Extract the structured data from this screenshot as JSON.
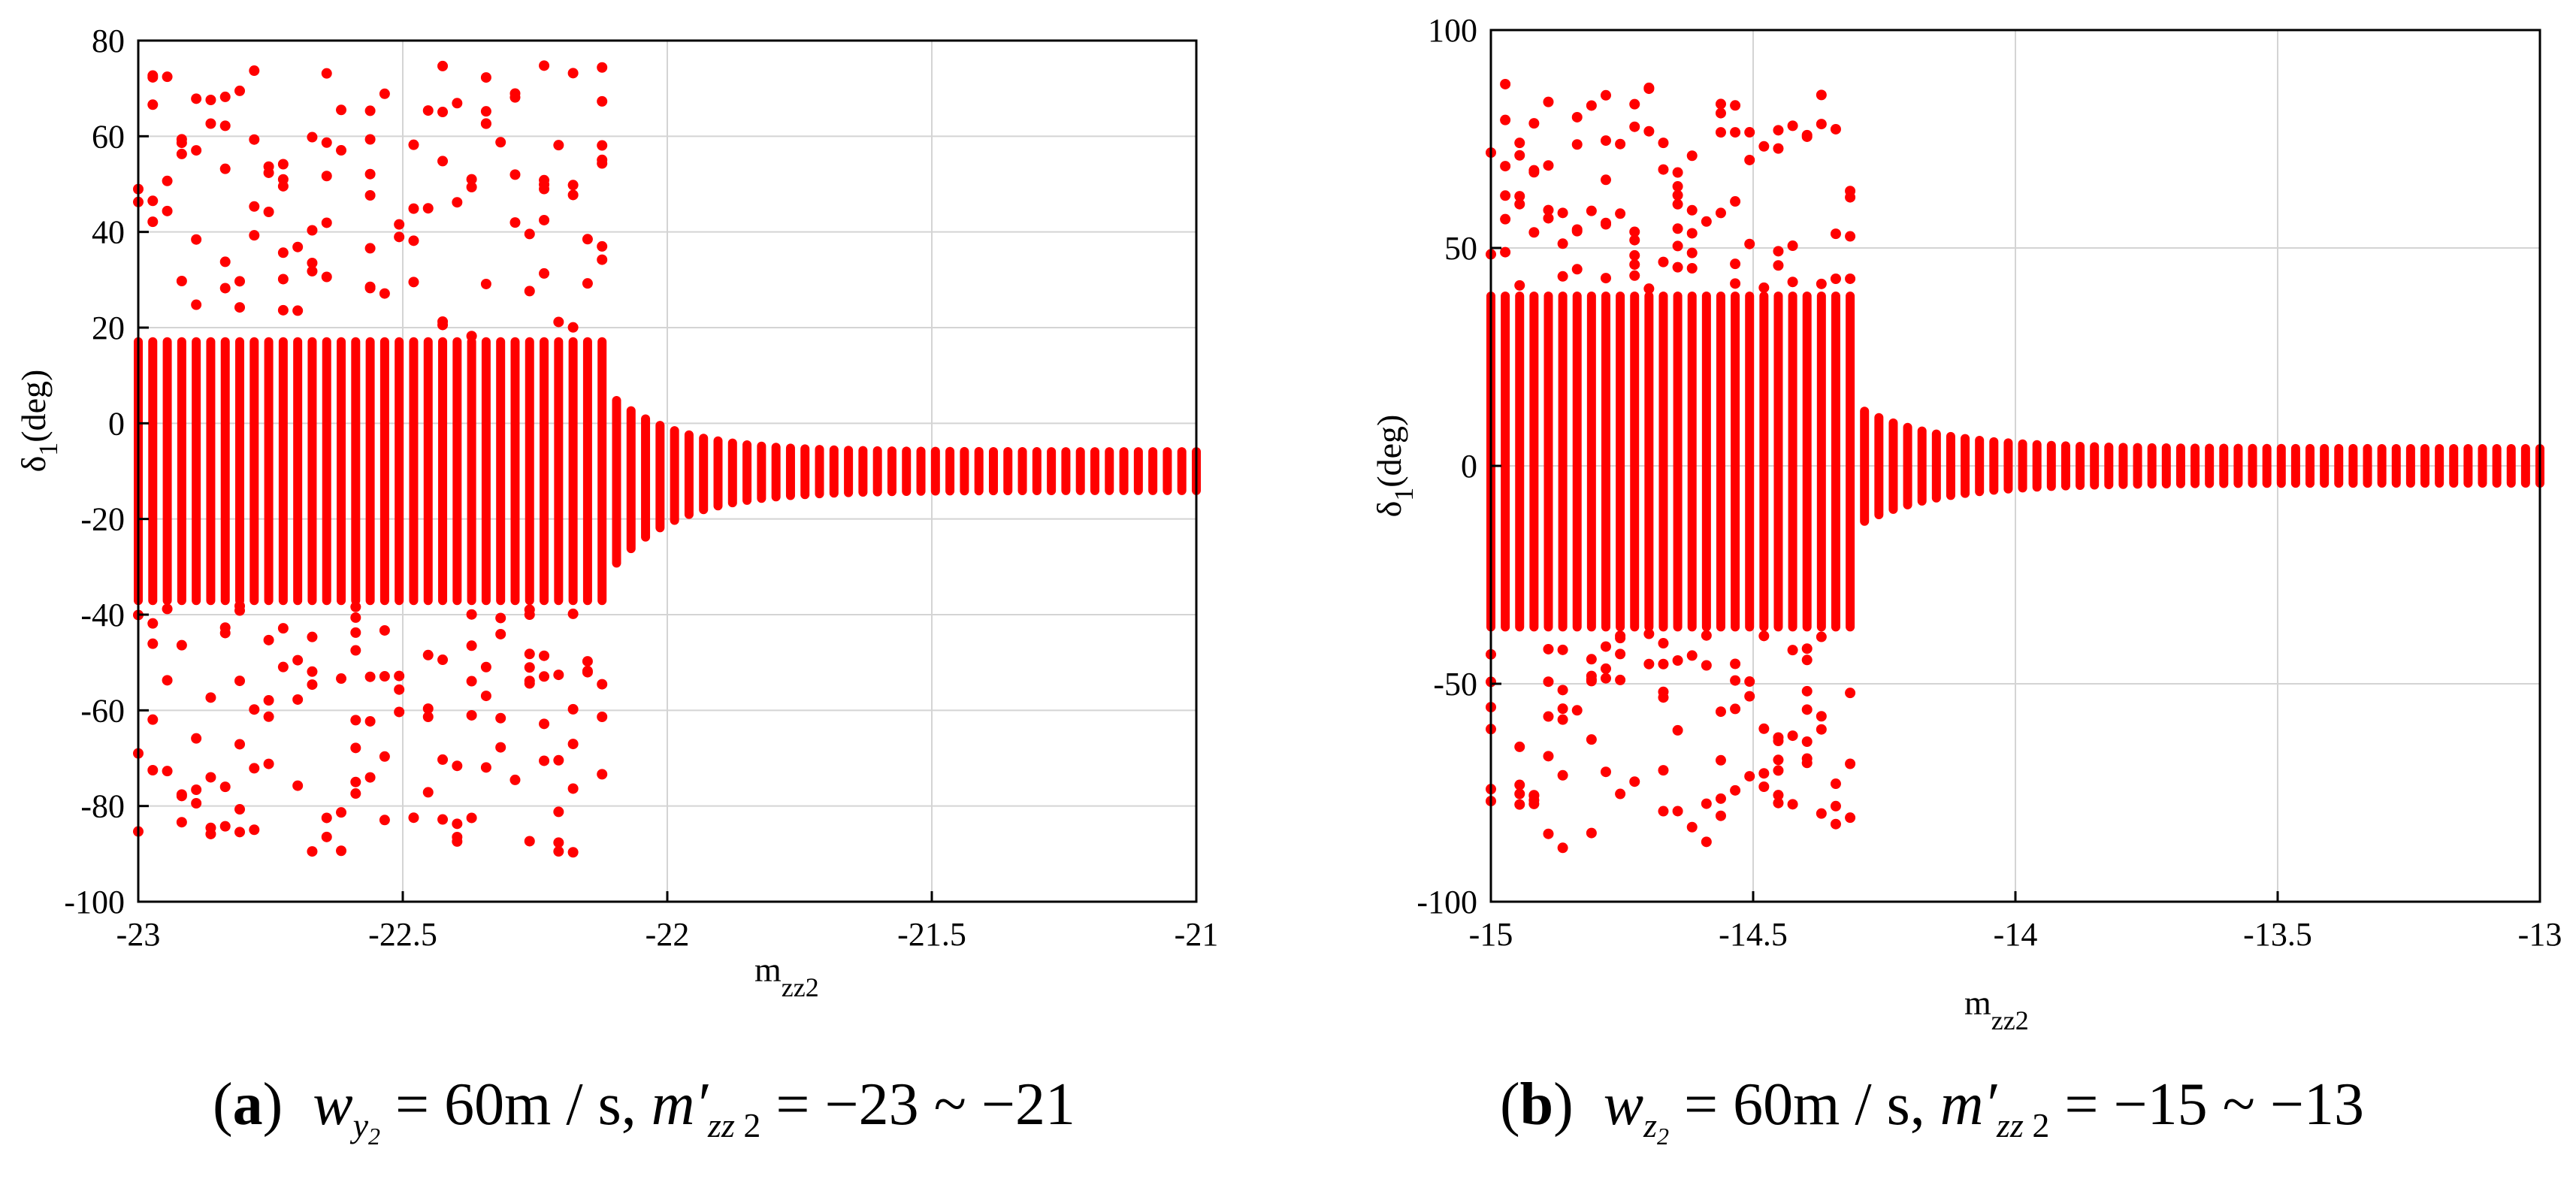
{
  "chart_data": [
    {
      "type": "scatter",
      "panel_label": "(a)",
      "caption": {
        "label_letter": "a",
        "var": "w",
        "var_sub": "y",
        "var_subsub": "2",
        "eq1": " = 60",
        "unit": "m / s, ",
        "m_var": "m′",
        "m_sub": "zz",
        "m_sub2": " 2",
        "range": " = −23 ~ −21"
      },
      "xlabel": "m",
      "xlabel_sub": "zz2",
      "ylabel": "δ",
      "ylabel_sub": "1",
      "ylabel_unit": "(deg)",
      "xlim": [
        -23,
        -21
      ],
      "ylim": [
        -100,
        80
      ],
      "xticks": [
        -23,
        -22.5,
        -22,
        -21.5,
        -21
      ],
      "xtick_labels": [
        "-23",
        "-22.5",
        "-22",
        "-21.5",
        "-21"
      ],
      "yticks": [
        -100,
        -80,
        -60,
        -40,
        -20,
        0,
        20,
        40,
        60,
        80
      ],
      "ytick_labels": [
        "-100",
        "-80",
        "-60",
        "-40",
        "-20",
        "0",
        "20",
        "40",
        "60",
        "80"
      ],
      "grid": true,
      "marker_color": "#ff0000",
      "columns": {
        "x_start": -23,
        "x_end": -21,
        "count": 74,
        "chaotic_until": -22.11,
        "chaotic_band": [
          -38,
          18
        ],
        "chaotic_extent": [
          -90,
          75
        ],
        "converge_band": [
          -15,
          -5
        ]
      }
    },
    {
      "type": "scatter",
      "panel_label": "(b)",
      "caption": {
        "label_letter": "b",
        "var": "w",
        "var_sub": "z",
        "var_subsub": "2",
        "eq1": " = 60",
        "unit": "m / s, ",
        "m_var": "m′",
        "m_sub": "zz",
        "m_sub2": " 2",
        "range": " = −15 ~ −13"
      },
      "xlabel": "m",
      "xlabel_sub": "zz2",
      "ylabel": "δ",
      "ylabel_sub": "1",
      "ylabel_unit": "(deg)",
      "xlim": [
        -15,
        -13
      ],
      "ylim": [
        -100,
        100
      ],
      "xticks": [
        -15,
        -14.5,
        -14,
        -13.5,
        -13
      ],
      "xtick_labels": [
        "-15",
        "-14.5",
        "-14",
        "-13.5",
        "-13"
      ],
      "yticks": [
        -100,
        -50,
        0,
        50,
        100
      ],
      "ytick_labels": [
        "-100",
        "-50",
        "0",
        "50",
        "100"
      ],
      "grid": true,
      "marker_color": "#ff0000",
      "columns": {
        "x_start": -15,
        "x_end": -13,
        "count": 74,
        "chaotic_until": -14.31,
        "chaotic_band": [
          -38,
          40
        ],
        "chaotic_extent": [
          -88,
          88
        ],
        "converge_band": [
          -5,
          5
        ]
      }
    }
  ]
}
